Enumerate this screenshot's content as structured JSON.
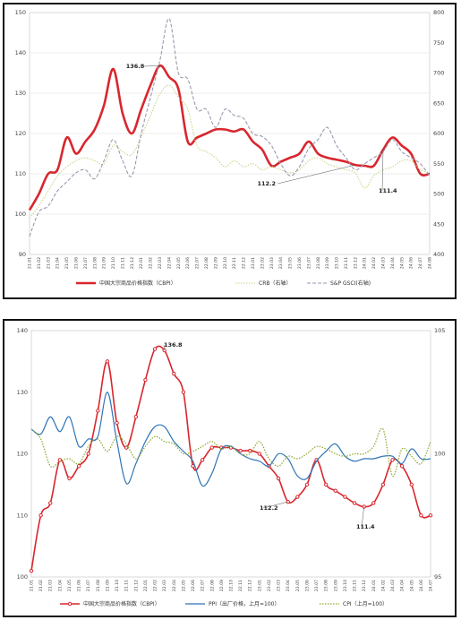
{
  "colors": {
    "cbpi": "#d9262e",
    "crb": "#c8d48a",
    "gsci": "#9a9ab0",
    "ppi": "#2e75b6",
    "cpi": "#8aa62a"
  },
  "x_labels_1": [
    "21.01",
    "21.02",
    "21.03",
    "21.04",
    "21.05",
    "21.06",
    "21.07",
    "21.08",
    "21.09",
    "21.10",
    "21.11",
    "21.12",
    "22.01",
    "22.02",
    "22.03",
    "22.04",
    "22.05",
    "22.06",
    "22.07",
    "22.08",
    "22.09",
    "22.10",
    "22.11",
    "22.12",
    "23.01",
    "23.02",
    "23.03",
    "23.04",
    "23.05",
    "23.06",
    "23.07",
    "23.08",
    "23.09",
    "23.10",
    "23.11",
    "23.12",
    "24.01",
    "24.02",
    "24.03",
    "24.04",
    "24.05",
    "24.06",
    "24.07",
    "24.08"
  ],
  "x_labels_2": [
    "21.01",
    "21.02",
    "21.03",
    "21.04",
    "21.05",
    "21.06",
    "21.07",
    "21.08",
    "21.09",
    "21.10",
    "21.11",
    "21.12",
    "22.01",
    "22.02",
    "22.03",
    "22.04",
    "22.05",
    "22.06",
    "22.07",
    "22.08",
    "22.09",
    "22.10",
    "22.11",
    "22.12",
    "23.01",
    "23.02",
    "23.03",
    "23.04",
    "23.05",
    "23.06",
    "23.07",
    "23.08",
    "23.09",
    "23.10",
    "23.11",
    "23.12",
    "24.01",
    "24.02",
    "24.03",
    "24.04",
    "24.05",
    "24.06",
    "24.07"
  ],
  "chart_data": [
    {
      "type": "line",
      "x": [
        "21.01",
        "21.02",
        "21.03",
        "21.04",
        "21.05",
        "21.06",
        "21.07",
        "21.08",
        "21.09",
        "21.10",
        "21.11",
        "21.12",
        "22.01",
        "22.02",
        "22.03",
        "22.04",
        "22.05",
        "22.06",
        "22.07",
        "22.08",
        "22.09",
        "22.10",
        "22.11",
        "22.12",
        "23.01",
        "23.02",
        "23.03",
        "23.04",
        "23.05",
        "23.06",
        "23.07",
        "23.08",
        "23.09",
        "23.10",
        "23.11",
        "23.12",
        "24.01",
        "24.02",
        "24.03",
        "24.04",
        "24.05",
        "24.06",
        "24.07",
        "24.08"
      ],
      "ylim": [
        90,
        150
      ],
      "yticks": [
        "90",
        "100",
        "110",
        "120",
        "130",
        "140",
        "150"
      ],
      "y2lim": [
        400,
        800
      ],
      "y2ticks": [
        "400",
        "450",
        "500",
        "550",
        "600",
        "650",
        "700",
        "750",
        "800"
      ],
      "series": [
        {
          "name": "中国大宗商品价格指数（CBPI）",
          "axis": "left",
          "values": [
            101,
            105,
            110,
            111,
            119,
            115,
            118,
            121,
            127,
            136,
            125,
            120,
            126,
            132,
            136.8,
            134,
            131,
            118,
            119,
            120,
            121,
            121,
            120.5,
            121,
            118,
            116,
            112,
            113,
            114,
            115,
            118,
            115,
            114,
            113.5,
            113,
            112.2,
            112,
            112,
            116,
            119,
            117,
            115,
            110,
            110
          ]
        },
        {
          "name": "CRB（右轴）",
          "axis": "right",
          "values": [
            460,
            480,
            505,
            530,
            545,
            555,
            560,
            555,
            550,
            580,
            570,
            565,
            595,
            630,
            665,
            680,
            660,
            640,
            580,
            570,
            560,
            545,
            555,
            545,
            550,
            540,
            545,
            540,
            535,
            540,
            555,
            560,
            550,
            545,
            540,
            535,
            510,
            530,
            540,
            545,
            555,
            555,
            540,
            535
          ]
        },
        {
          "name": "S&P GSCI(右轴)",
          "axis": "right",
          "values": [
            430,
            470,
            480,
            505,
            520,
            535,
            540,
            525,
            555,
            590,
            555,
            530,
            600,
            660,
            720,
            790,
            700,
            690,
            640,
            640,
            610,
            640,
            630,
            625,
            600,
            595,
            580,
            550,
            530,
            545,
            575,
            590,
            610,
            580,
            560,
            540,
            550,
            560,
            570,
            590,
            570,
            560,
            550,
            530
          ]
        }
      ],
      "annotations": [
        "136.8",
        "112.2",
        "111.4"
      ]
    },
    {
      "type": "line",
      "x": [
        "21.01",
        "21.02",
        "21.03",
        "21.04",
        "21.05",
        "21.06",
        "21.07",
        "21.08",
        "21.09",
        "21.10",
        "21.11",
        "21.12",
        "22.01",
        "22.02",
        "22.03",
        "22.04",
        "22.05",
        "22.06",
        "22.07",
        "22.08",
        "22.09",
        "22.10",
        "22.11",
        "22.12",
        "23.01",
        "23.02",
        "23.03",
        "23.04",
        "23.05",
        "23.06",
        "23.07",
        "23.08",
        "23.09",
        "23.10",
        "23.11",
        "23.12",
        "24.01",
        "24.02",
        "24.03",
        "24.04",
        "24.05",
        "24.06",
        "24.07"
      ],
      "ylim": [
        100,
        140
      ],
      "yticks": [
        "100",
        "110",
        "120",
        "130",
        "140"
      ],
      "y2lim": [
        95,
        105
      ],
      "y2ticks": [
        "95",
        "100",
        "105"
      ],
      "series": [
        {
          "name": "中国大宗商品价格指数（CBPI）",
          "axis": "left",
          "values": [
            101,
            110,
            112,
            119,
            116,
            118,
            120,
            127,
            135,
            125,
            121,
            126,
            132,
            137,
            136.8,
            133,
            130,
            118,
            119,
            121,
            121,
            121,
            120.5,
            120.5,
            120,
            118,
            116,
            112.2,
            113,
            115,
            119,
            115,
            114,
            113,
            112,
            111.4,
            112,
            115,
            119,
            118,
            115,
            110,
            110
          ]
        },
        {
          "name": "PPI（出厂价格，上月=100）",
          "axis": "right",
          "values": [
            101,
            100.8,
            101.5,
            100.9,
            101.5,
            100.3,
            100.6,
            100.7,
            102.5,
            100.5,
            98.8,
            99.6,
            100.5,
            101.1,
            101.1,
            100.5,
            100.1,
            99.7,
            98.7,
            99.2,
            100.2,
            100.3,
            100.0,
            99.8,
            99.7,
            99.5,
            100.0,
            99.8,
            99.1,
            99.0,
            99.7,
            100.1,
            100.4,
            99.9,
            99.7,
            99.8,
            99.8,
            99.9,
            99.9,
            99.6,
            100.2,
            99.8,
            99.8
          ]
        },
        {
          "name": "CPI（上月=100）",
          "axis": "right",
          "values": [
            101.0,
            100.6,
            99.5,
            99.7,
            99.8,
            99.6,
            100.3,
            100.6,
            100.1,
            100.7,
            100.4,
            99.8,
            100.3,
            100.7,
            100.5,
            100.4,
            100.0,
            100.1,
            100.3,
            100.5,
            100.2,
            100.3,
            100.0,
            100.0,
            100.5,
            99.8,
            99.5,
            99.9,
            99.8,
            100.0,
            100.3,
            100.2,
            100.0,
            99.9,
            100.0,
            100.0,
            100.3,
            101.0,
            99.1,
            100.2,
            99.9,
            99.6,
            100.5
          ]
        }
      ],
      "annotations": [
        "136.8",
        "112.2",
        "111.4"
      ]
    }
  ]
}
